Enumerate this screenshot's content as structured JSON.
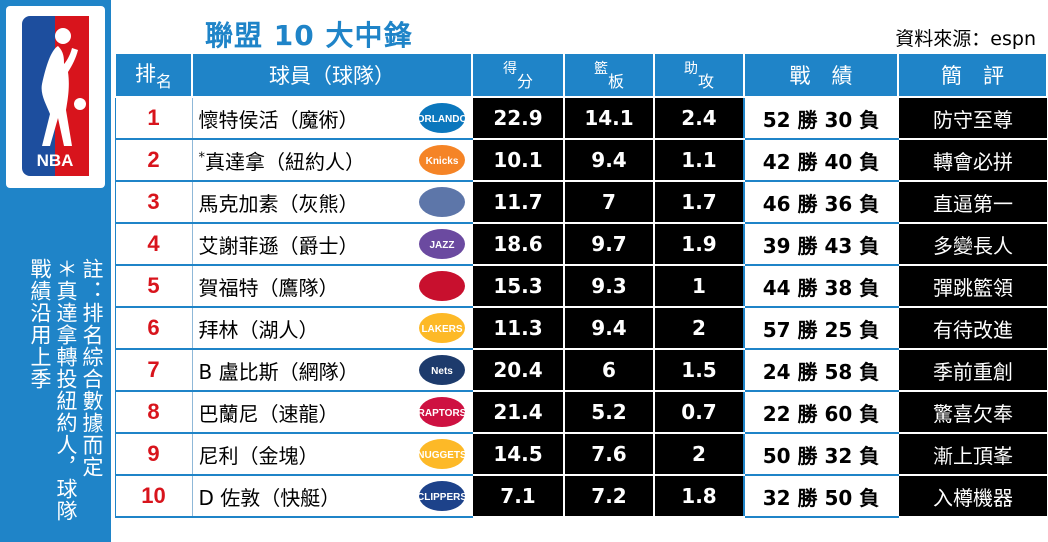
{
  "title": "聯盟 10 大中鋒",
  "source": "資料來源：espn",
  "logo_text": "NBA",
  "note": {
    "line1": "註：排名綜合數據而定",
    "line2": "＊真達拿轉投紐約人，球隊",
    "line3": "戰績沿用上季"
  },
  "headers": {
    "rank_a": "排",
    "rank_b": "名",
    "player": "球員（球隊）",
    "pts_a": "得",
    "pts_b": "分",
    "reb_a": "籃",
    "reb_b": "板",
    "ast_a": "助",
    "ast_b": "攻",
    "record": "戰　績",
    "comment": "簡　評"
  },
  "rows": [
    {
      "rank": "1",
      "mark": "",
      "player": "懷特侯活（魔術）",
      "team": "magic-logo",
      "pts": "22.9",
      "reb": "14.1",
      "ast": "2.4",
      "record": "52 勝 30 負",
      "comment": "防守至尊",
      "color": "#0b77bd",
      "label": "ORLANDO"
    },
    {
      "rank": "2",
      "mark": "*",
      "player": "真達拿（紐約人）",
      "team": "knicks-logo",
      "pts": "10.1",
      "reb": "9.4",
      "ast": "1.1",
      "record": "42 勝 40 負",
      "comment": "轉會必拼",
      "color": "#f58426",
      "label": "Knicks"
    },
    {
      "rank": "3",
      "mark": "",
      "player": "馬克加素（灰熊）",
      "team": "grizzlies-logo",
      "pts": "11.7",
      "reb": "7",
      "ast": "1.7",
      "record": "46 勝 36 負",
      "comment": "直逼第一",
      "color": "#5d76a9",
      "label": ""
    },
    {
      "rank": "4",
      "mark": "",
      "player": "艾謝菲遜（爵士）",
      "team": "jazz-logo",
      "pts": "18.6",
      "reb": "9.7",
      "ast": "1.9",
      "record": "39 勝 43 負",
      "comment": "多變長人",
      "color": "#6b4aa0",
      "label": "JAZZ"
    },
    {
      "rank": "5",
      "mark": "",
      "player": "賀福特（鷹隊）",
      "team": "hawks-logo",
      "pts": "15.3",
      "reb": "9.3",
      "ast": "1",
      "record": "44 勝 38 負",
      "comment": "彈跳籃領",
      "color": "#c8102e",
      "label": ""
    },
    {
      "rank": "6",
      "mark": "",
      "player": "拜林（湖人）",
      "team": "lakers-logo",
      "pts": "11.3",
      "reb": "9.4",
      "ast": "2",
      "record": "57 勝 25 負",
      "comment": "有待改進",
      "color": "#fdb927",
      "label": "LAKERS"
    },
    {
      "rank": "7",
      "mark": "",
      "player": "B 盧比斯（網隊）",
      "team": "nets-logo",
      "pts": "20.4",
      "reb": "6",
      "ast": "1.5",
      "record": "24 勝 58 負",
      "comment": "季前重創",
      "color": "#1d3b6c",
      "label": "Nets"
    },
    {
      "rank": "8",
      "mark": "",
      "player": "巴蘭尼（速龍）",
      "team": "raptors-logo",
      "pts": "21.4",
      "reb": "5.2",
      "ast": "0.7",
      "record": "22 勝 60 負",
      "comment": "驚喜欠奉",
      "color": "#ce1141",
      "label": "RAPTORS"
    },
    {
      "rank": "9",
      "mark": "",
      "player": "尼利（金塊）",
      "team": "nuggets-logo",
      "pts": "14.5",
      "reb": "7.6",
      "ast": "2",
      "record": "50 勝 32 負",
      "comment": "漸上頂峯",
      "color": "#fdb927",
      "label": "NUGGETS"
    },
    {
      "rank": "10",
      "mark": "",
      "player": "D 佐敦（快艇）",
      "team": "clippers-logo",
      "pts": "7.1",
      "reb": "7.2",
      "ast": "1.8",
      "record": "32 勝 50 負",
      "comment": "入樽機器",
      "color": "#1d428a",
      "label": "CLIPPERS"
    }
  ]
}
